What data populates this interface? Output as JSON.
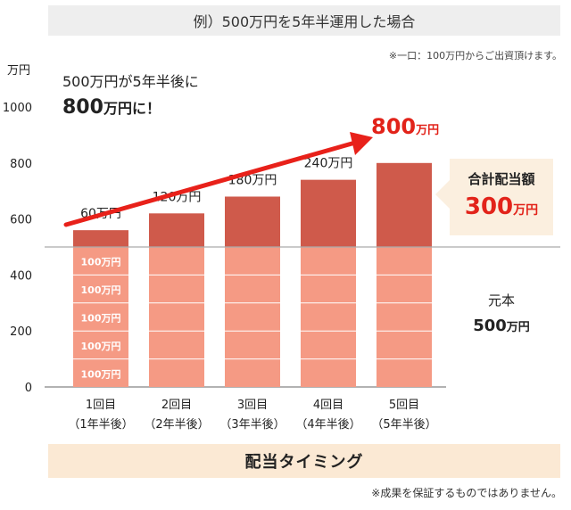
{
  "header": {
    "title": "例）500万円を5年半運用した場合",
    "note": "※一口：100万円からご出資頂けます。"
  },
  "headline": {
    "line1": "500万円が5年半後に",
    "line2_num": "800",
    "line2_unit": "万円に！"
  },
  "total": {
    "label": "合計配当額",
    "value": "300",
    "unit": "万円"
  },
  "principal": {
    "label": "元本",
    "value": "500",
    "unit": "万円"
  },
  "footer": {
    "timing_label": "配当タイミング",
    "disclaimer": "※成果を保証するものではありません。"
  },
  "colors": {
    "principal_bar": "#f59a84",
    "dividend_bar": "#cf5a4b",
    "arrow": "#e8211a",
    "accent_text": "#e2231a"
  },
  "chart_data": {
    "type": "bar",
    "ylabel": "万円",
    "ylim": [
      0,
      1000
    ],
    "yticks": [
      0,
      200,
      400,
      600,
      800,
      1000
    ],
    "baseline": 500,
    "categories": [
      "1回目\n（1年半後）",
      "2回目\n（2年半後）",
      "3回目\n（3年半後）",
      "4回目\n（4年半後）",
      "5回目\n（5年半後）"
    ],
    "series": [
      {
        "values": [
          500,
          500,
          500,
          500,
          500
        ]
      },
      {
        "values": [
          60,
          120,
          180,
          240,
          300
        ]
      }
    ],
    "segment_labels": [
      "100万円",
      "100万円",
      "100万円",
      "100万円",
      "100万円"
    ],
    "top_labels": [
      "60万円",
      "120万円",
      "180万円",
      "240万円",
      "800万円"
    ],
    "final_label_num": "800",
    "final_label_unit": "万円"
  }
}
